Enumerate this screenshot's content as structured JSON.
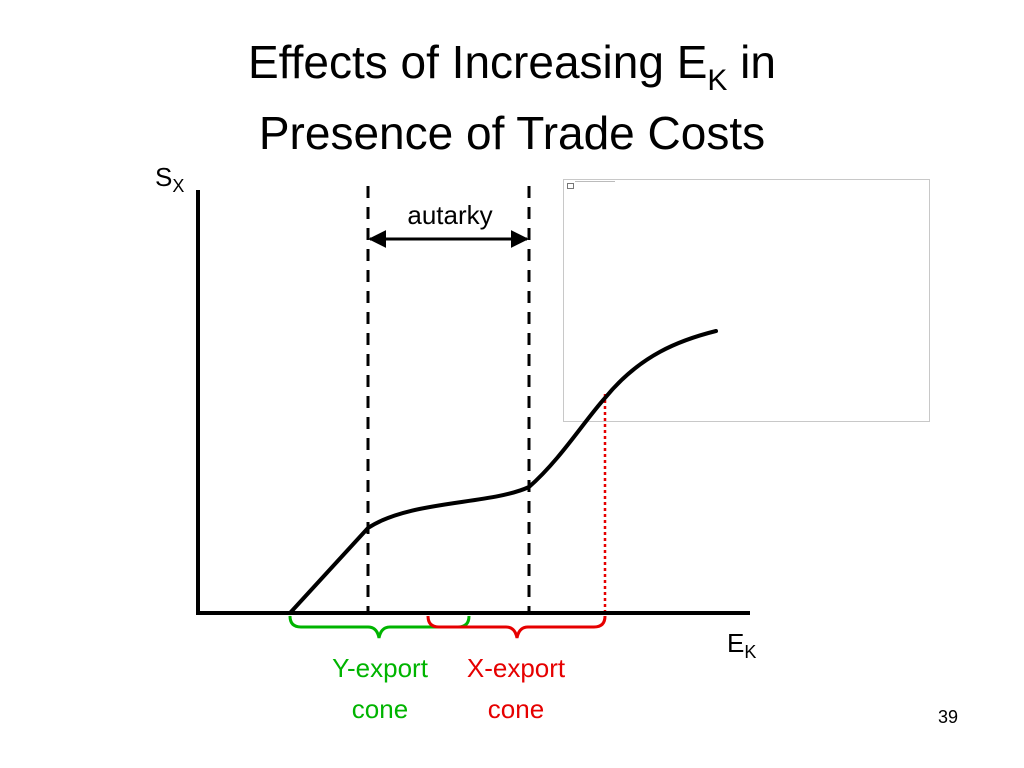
{
  "slide": {
    "title_line1_pre": "Effects of Increasing E",
    "title_line1_sub": "K",
    "title_line1_post": " in",
    "title_line2": "Presence of Trade Costs",
    "page_number": "39"
  },
  "diagram": {
    "y_axis_label": "S",
    "y_axis_label_sub": "X",
    "x_axis_label": "E",
    "x_axis_label_sub": "K",
    "autarky_label": "autarky",
    "y_export_label_line1": "Y-export",
    "y_export_label_line2": "cone",
    "x_export_label_line1": "X-export",
    "x_export_label_line2": "cone",
    "colors": {
      "y_export": "#00b400",
      "x_export": "#e60000",
      "lines": "#000000"
    }
  }
}
